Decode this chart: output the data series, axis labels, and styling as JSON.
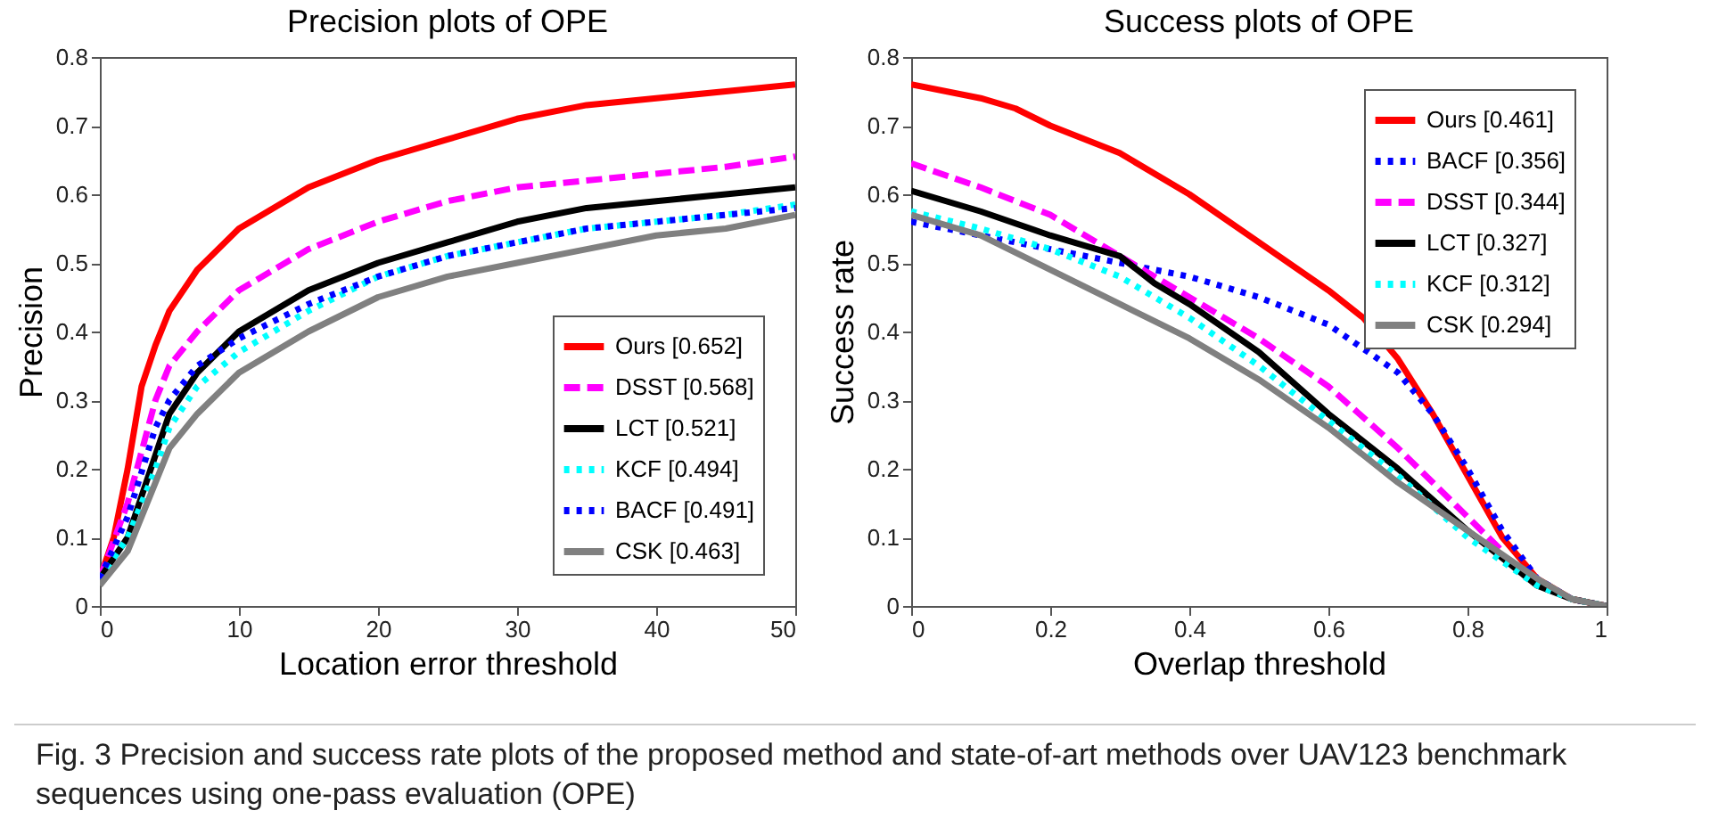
{
  "chart_data": [
    {
      "type": "line",
      "title": "Precision plots of OPE",
      "xlabel": "Location error threshold",
      "ylabel": "Precision",
      "xlim": [
        0,
        50
      ],
      "ylim": [
        0,
        0.8
      ],
      "xticks": [
        0,
        10,
        20,
        30,
        40,
        50
      ],
      "yticks": [
        0,
        0.1,
        0.2,
        0.3,
        0.4,
        0.5,
        0.6,
        0.7,
        0.8
      ],
      "legend": "bottom right",
      "annotations": [
        "Fig. 3 Precision and success rate plots of the proposed method and state-of-art methods over UAV123 benchmark sequences using one-pass evaluation (OPE)"
      ],
      "series": [
        {
          "name": "Ours [0.652]",
          "color": "#ff0000",
          "line_style": "solid",
          "x": [
            0,
            1,
            2,
            3,
            4,
            5,
            7,
            10,
            15,
            20,
            25,
            30,
            35,
            40,
            45,
            50
          ],
          "values": [
            0.04,
            0.1,
            0.2,
            0.32,
            0.38,
            0.43,
            0.49,
            0.55,
            0.61,
            0.65,
            0.68,
            0.71,
            0.73,
            0.74,
            0.75,
            0.76
          ]
        },
        {
          "name": "DSST [0.568]",
          "color": "#ff00ff",
          "line_style": "dashed",
          "x": [
            0,
            2,
            4,
            5,
            7,
            10,
            15,
            20,
            25,
            30,
            35,
            40,
            45,
            50
          ],
          "values": [
            0.04,
            0.15,
            0.3,
            0.35,
            0.4,
            0.46,
            0.52,
            0.56,
            0.59,
            0.61,
            0.62,
            0.63,
            0.64,
            0.655
          ]
        },
        {
          "name": "LCT [0.521]",
          "color": "#000000",
          "line_style": "solid",
          "x": [
            0,
            2,
            4,
            5,
            7,
            10,
            15,
            20,
            25,
            30,
            35,
            40,
            45,
            50
          ],
          "values": [
            0.04,
            0.1,
            0.22,
            0.28,
            0.34,
            0.4,
            0.46,
            0.5,
            0.53,
            0.56,
            0.58,
            0.59,
            0.6,
            0.61
          ]
        },
        {
          "name": "KCF [0.494]",
          "color": "#00ffff",
          "line_style": "dotted",
          "x": [
            0,
            2,
            4,
            5,
            7,
            10,
            15,
            20,
            25,
            30,
            35,
            40,
            45,
            50
          ],
          "values": [
            0.04,
            0.1,
            0.2,
            0.26,
            0.32,
            0.37,
            0.43,
            0.48,
            0.51,
            0.53,
            0.55,
            0.56,
            0.57,
            0.585
          ]
        },
        {
          "name": "BACF [0.491]",
          "color": "#0000ff",
          "line_style": "dotted",
          "x": [
            0,
            2,
            4,
            5,
            7,
            10,
            15,
            20,
            25,
            30,
            35,
            40,
            45,
            50
          ],
          "values": [
            0.04,
            0.13,
            0.26,
            0.3,
            0.35,
            0.39,
            0.44,
            0.48,
            0.51,
            0.53,
            0.55,
            0.56,
            0.57,
            0.58
          ]
        },
        {
          "name": "CSK [0.463]",
          "color": "#808080",
          "line_style": "solid",
          "x": [
            0,
            2,
            4,
            5,
            7,
            10,
            15,
            20,
            25,
            30,
            35,
            40,
            45,
            50
          ],
          "values": [
            0.03,
            0.08,
            0.18,
            0.23,
            0.28,
            0.34,
            0.4,
            0.45,
            0.48,
            0.5,
            0.52,
            0.54,
            0.55,
            0.57
          ]
        }
      ]
    },
    {
      "type": "line",
      "title": "Success plots of OPE",
      "xlabel": "Overlap threshold",
      "ylabel": "Success rate",
      "xlim": [
        0,
        1
      ],
      "ylim": [
        0,
        0.8
      ],
      "xticks": [
        0,
        0.2,
        0.4,
        0.6,
        0.8,
        1
      ],
      "yticks": [
        0,
        0.1,
        0.2,
        0.3,
        0.4,
        0.5,
        0.6,
        0.7,
        0.8
      ],
      "legend": "top right",
      "series": [
        {
          "name": "Ours [0.461]",
          "color": "#ff0000",
          "line_style": "solid",
          "x": [
            0,
            0.1,
            0.15,
            0.2,
            0.3,
            0.4,
            0.5,
            0.6,
            0.65,
            0.7,
            0.75,
            0.8,
            0.85,
            0.9,
            0.95,
            1
          ],
          "values": [
            0.76,
            0.74,
            0.725,
            0.7,
            0.66,
            0.6,
            0.53,
            0.46,
            0.42,
            0.36,
            0.28,
            0.19,
            0.1,
            0.04,
            0.01,
            0
          ]
        },
        {
          "name": "BACF [0.356]",
          "color": "#0000ff",
          "line_style": "dotted",
          "x": [
            0,
            0.1,
            0.2,
            0.3,
            0.4,
            0.5,
            0.6,
            0.7,
            0.75,
            0.8,
            0.85,
            0.9,
            0.95,
            1
          ],
          "values": [
            0.56,
            0.54,
            0.52,
            0.5,
            0.48,
            0.45,
            0.41,
            0.34,
            0.28,
            0.2,
            0.11,
            0.04,
            0.01,
            0
          ]
        },
        {
          "name": "DSST [0.344]",
          "color": "#ff00ff",
          "line_style": "dashed",
          "x": [
            0,
            0.1,
            0.2,
            0.3,
            0.4,
            0.5,
            0.6,
            0.7,
            0.8,
            0.85
          ],
          "values": [
            0.645,
            0.61,
            0.57,
            0.51,
            0.45,
            0.39,
            0.32,
            0.23,
            0.13,
            0.08
          ]
        },
        {
          "name": "LCT [0.327]",
          "color": "#000000",
          "line_style": "solid",
          "x": [
            0,
            0.1,
            0.2,
            0.3,
            0.35,
            0.4,
            0.5,
            0.6,
            0.7,
            0.8,
            0.9,
            0.95,
            1
          ],
          "values": [
            0.605,
            0.575,
            0.54,
            0.51,
            0.47,
            0.44,
            0.37,
            0.28,
            0.2,
            0.11,
            0.03,
            0.01,
            0
          ]
        },
        {
          "name": "KCF [0.312]",
          "color": "#00ffff",
          "line_style": "dotted",
          "x": [
            0,
            0.1,
            0.2,
            0.3,
            0.4,
            0.5,
            0.6,
            0.7,
            0.8,
            0.9,
            0.95,
            1
          ],
          "values": [
            0.575,
            0.55,
            0.52,
            0.48,
            0.42,
            0.35,
            0.27,
            0.19,
            0.1,
            0.03,
            0.01,
            0
          ]
        },
        {
          "name": "CSK [0.294]",
          "color": "#808080",
          "line_style": "solid",
          "x": [
            0,
            0.1,
            0.2,
            0.3,
            0.4,
            0.5,
            0.6,
            0.7,
            0.8,
            0.9,
            0.95,
            1
          ],
          "values": [
            0.57,
            0.54,
            0.49,
            0.44,
            0.39,
            0.33,
            0.26,
            0.18,
            0.11,
            0.04,
            0.01,
            0
          ]
        }
      ]
    }
  ]
}
